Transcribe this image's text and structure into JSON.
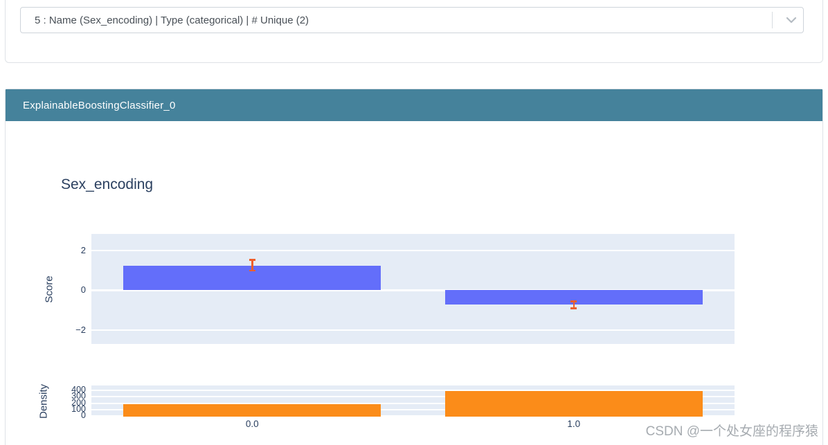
{
  "selector": {
    "value": "5 : Name (Sex_encoding) | Type (categorical) | # Unique (2)",
    "chevron_icon": "chevron-down-icon"
  },
  "model": {
    "header": "ExplainableBoostingClassifier_0"
  },
  "watermark": {
    "text": "CSDN @一个处女座的程序猿"
  },
  "colors": {
    "header_teal": "#45829b",
    "plot_background": "#e5ecf6",
    "score_bar": "#636efa",
    "density_bar": "#fb8c19",
    "error_bar": "#ef5e2b",
    "axis_text": "#2a3f5f"
  },
  "chart_data": {
    "type": "bar",
    "title": "Sex_encoding",
    "categories": [
      "0.0",
      "1.0"
    ],
    "grid": true,
    "panels": [
      {
        "name": "score",
        "ylabel": "Score",
        "yticks": [
          2,
          0,
          -2
        ],
        "ylim": [
          -2.7,
          2.82
        ],
        "series": [
          {
            "name": "Score",
            "values": [
              1.22,
              -0.72
            ],
            "errors_low": [
              0.94,
              -0.95
            ],
            "errors_high": [
              1.57,
              -0.52
            ],
            "color": "#636efa"
          }
        ]
      },
      {
        "name": "density",
        "ylabel": "Density",
        "yticks": [
          400,
          300,
          200,
          100,
          0
        ],
        "ylim": [
          0,
          470
        ],
        "series": [
          {
            "name": "Density",
            "values": [
              190,
              385
            ],
            "color": "#fb8c19"
          }
        ]
      }
    ]
  }
}
